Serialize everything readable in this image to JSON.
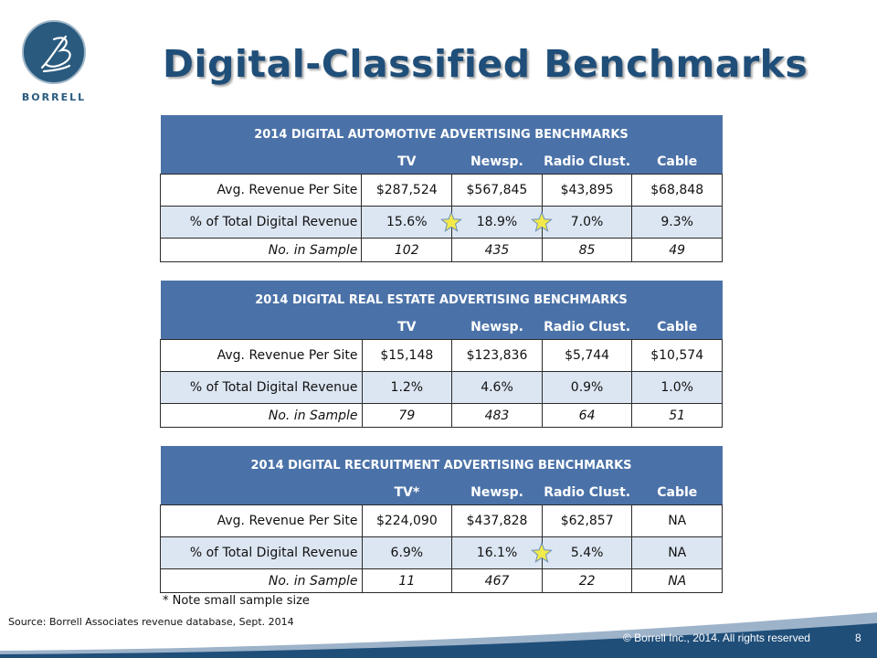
{
  "logo": {
    "wordmark": "BORRELL",
    "monogram": "B"
  },
  "title": "Digital-Classified Benchmarks",
  "tables": [
    {
      "title": "2014  DIGITAL AUTOMOTIVE ADVERTISING BENCHMARKS",
      "columns": [
        "TV",
        "Newsp.",
        "Radio Clust.",
        "Cable"
      ],
      "rows": [
        {
          "label": "Avg. Revenue Per Site",
          "values": [
            "$287,524",
            "$567,845",
            "$43,895",
            "$68,848"
          ]
        },
        {
          "label": "% of Total Digital Revenue",
          "values": [
            "15.6%",
            "18.9%",
            "7.0%",
            "9.3%"
          ]
        },
        {
          "label": "No. in Sample",
          "values": [
            "102",
            "435",
            "85",
            "49"
          ]
        }
      ],
      "starred_columns": [
        0,
        1
      ]
    },
    {
      "title": "2014  DIGITAL REAL ESTATE ADVERTISING BENCHMARKS",
      "columns": [
        "TV",
        "Newsp.",
        "Radio Clust.",
        "Cable"
      ],
      "rows": [
        {
          "label": "Avg. Revenue Per Site",
          "values": [
            "$15,148",
            "$123,836",
            "$5,744",
            "$10,574"
          ]
        },
        {
          "label": "% of Total Digital Revenue",
          "values": [
            "1.2%",
            "4.6%",
            "0.9%",
            "1.0%"
          ]
        },
        {
          "label": "No. in Sample",
          "values": [
            "79",
            "483",
            "64",
            "51"
          ]
        }
      ],
      "starred_columns": []
    },
    {
      "title": "2014  DIGITAL RECRUITMENT ADVERTISING BENCHMARKS",
      "columns": [
        "TV*",
        "Newsp.",
        "Radio Clust.",
        "Cable"
      ],
      "rows": [
        {
          "label": "Avg. Revenue Per Site",
          "values": [
            "$224,090",
            "$437,828",
            "$62,857",
            "NA"
          ]
        },
        {
          "label": "% of Total Digital Revenue",
          "values": [
            "6.9%",
            "16.1%",
            "5.4%",
            "NA"
          ]
        },
        {
          "label": "No. in Sample",
          "values": [
            "11",
            "467",
            "22",
            "NA"
          ]
        }
      ],
      "starred_columns": [
        1
      ]
    }
  ],
  "note": "* Note small sample size",
  "source": "Source: Borrell Associates revenue database, Sept. 2014",
  "footer": {
    "copyright": "© Borrell Inc., 2014. All rights reserved",
    "page_number": "8"
  },
  "colors": {
    "title": "#1f4e79",
    "table_header": "#4b72a8",
    "shaded_row": "#dce6f2",
    "footer_band": "#1f4e79",
    "star_fill": "#f2e94a",
    "star_stroke": "#6b8fb8"
  },
  "icons": {
    "highlight_marker": "star-icon"
  }
}
